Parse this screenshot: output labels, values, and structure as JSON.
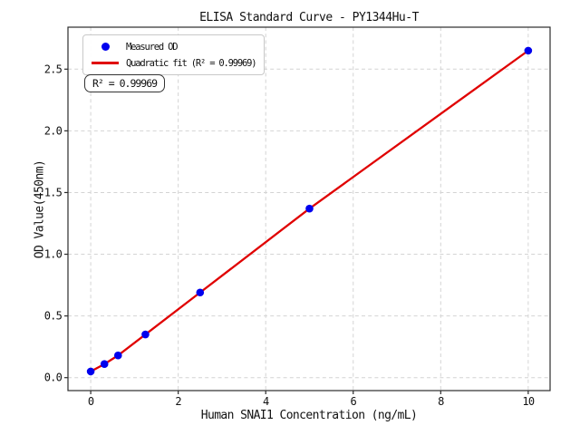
{
  "figure": {
    "title": "ELISA Standard Curve - PY1344Hu-T",
    "annotation": "R² = 0.99969"
  },
  "chart_data": {
    "type": "scatter",
    "title": "ELISA Standard Curve - PY1344Hu-T",
    "xlabel": "Human SNAI1 Concentration (ng/mL)",
    "ylabel": "OD Value(450nm)",
    "r_squared": "0.99969",
    "annotation": "R² = 0.99969",
    "legend_position": "upper-left",
    "grid": true,
    "xlim": [
      -0.52,
      10.5
    ],
    "ylim": [
      -0.105,
      2.84
    ],
    "xticks": [
      0,
      2,
      4,
      6,
      8,
      10
    ],
    "ytick_labels": [
      "0.0",
      "0.5",
      "1.0",
      "1.5",
      "2.0",
      "2.5"
    ],
    "series": [
      {
        "name": "Measured OD",
        "kind": "scatter",
        "color": "#0000ee",
        "x": [
          0,
          0.313,
          0.625,
          1.25,
          2.5,
          5,
          10
        ],
        "y": [
          0.05,
          0.11,
          0.18,
          0.35,
          0.69,
          1.37,
          2.65
        ]
      },
      {
        "name": "Quadratic fit (R² = 0.99969)",
        "kind": "line",
        "color": "#e00000",
        "x": [
          0,
          0.313,
          0.625,
          1.25,
          2.5,
          5,
          10
        ],
        "y": [
          0.05,
          0.11,
          0.18,
          0.35,
          0.69,
          1.37,
          2.65
        ]
      }
    ],
    "colors": {
      "measured": "#0000ee",
      "fit": "#e00000",
      "grid": "#d4d4d4",
      "spine": "#2b2b2b",
      "tick": "#2b2b2b",
      "text": "#111111"
    }
  }
}
